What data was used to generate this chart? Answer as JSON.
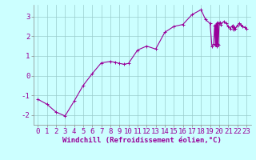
{
  "line_color": "#990099",
  "marker": "+",
  "markersize": 3,
  "linewidth": 0.8,
  "bg_color": "#ccffff",
  "grid_color": "#99cccc",
  "xlabel": "Windchill (Refroidissement éolien,°C)",
  "xlim": [
    -0.5,
    23.5
  ],
  "ylim": [
    -2.5,
    3.6
  ],
  "yticks": [
    -2,
    -1,
    0,
    1,
    2,
    3
  ],
  "xticks": [
    0,
    1,
    2,
    3,
    4,
    5,
    6,
    7,
    8,
    9,
    10,
    11,
    12,
    13,
    14,
    15,
    16,
    17,
    18,
    19,
    20,
    21,
    22,
    23
  ],
  "xlabel_fontsize": 6.5,
  "tick_fontsize": 6.5,
  "x_data": [
    0,
    1,
    2,
    3,
    4,
    5,
    6,
    7,
    8,
    8.5,
    9,
    9.5,
    10,
    11,
    12,
    13,
    14,
    15,
    16,
    17,
    18,
    18.5,
    19,
    19.2,
    19.4,
    19.5,
    19.6,
    19.65,
    19.7,
    19.75,
    19.8,
    19.85,
    19.9,
    20,
    20.1,
    20.2,
    20.5,
    20.8,
    21,
    21.2,
    21.4,
    21.5,
    21.6,
    21.7,
    21.8,
    22,
    22.2,
    22.4,
    22.6,
    22.8,
    23
  ],
  "y_data": [
    -1.2,
    -1.45,
    -1.85,
    -2.05,
    -1.3,
    -0.5,
    0.1,
    0.65,
    0.72,
    0.68,
    0.62,
    0.58,
    0.62,
    1.3,
    1.5,
    1.35,
    2.2,
    2.5,
    2.6,
    3.1,
    3.35,
    2.85,
    2.65,
    1.5,
    1.6,
    2.55,
    1.55,
    2.6,
    1.5,
    2.65,
    1.6,
    2.7,
    1.55,
    2.65,
    2.7,
    2.6,
    2.75,
    2.65,
    2.5,
    2.4,
    2.5,
    2.55,
    2.35,
    2.45,
    2.4,
    2.55,
    2.65,
    2.6,
    2.5,
    2.45,
    2.4
  ]
}
